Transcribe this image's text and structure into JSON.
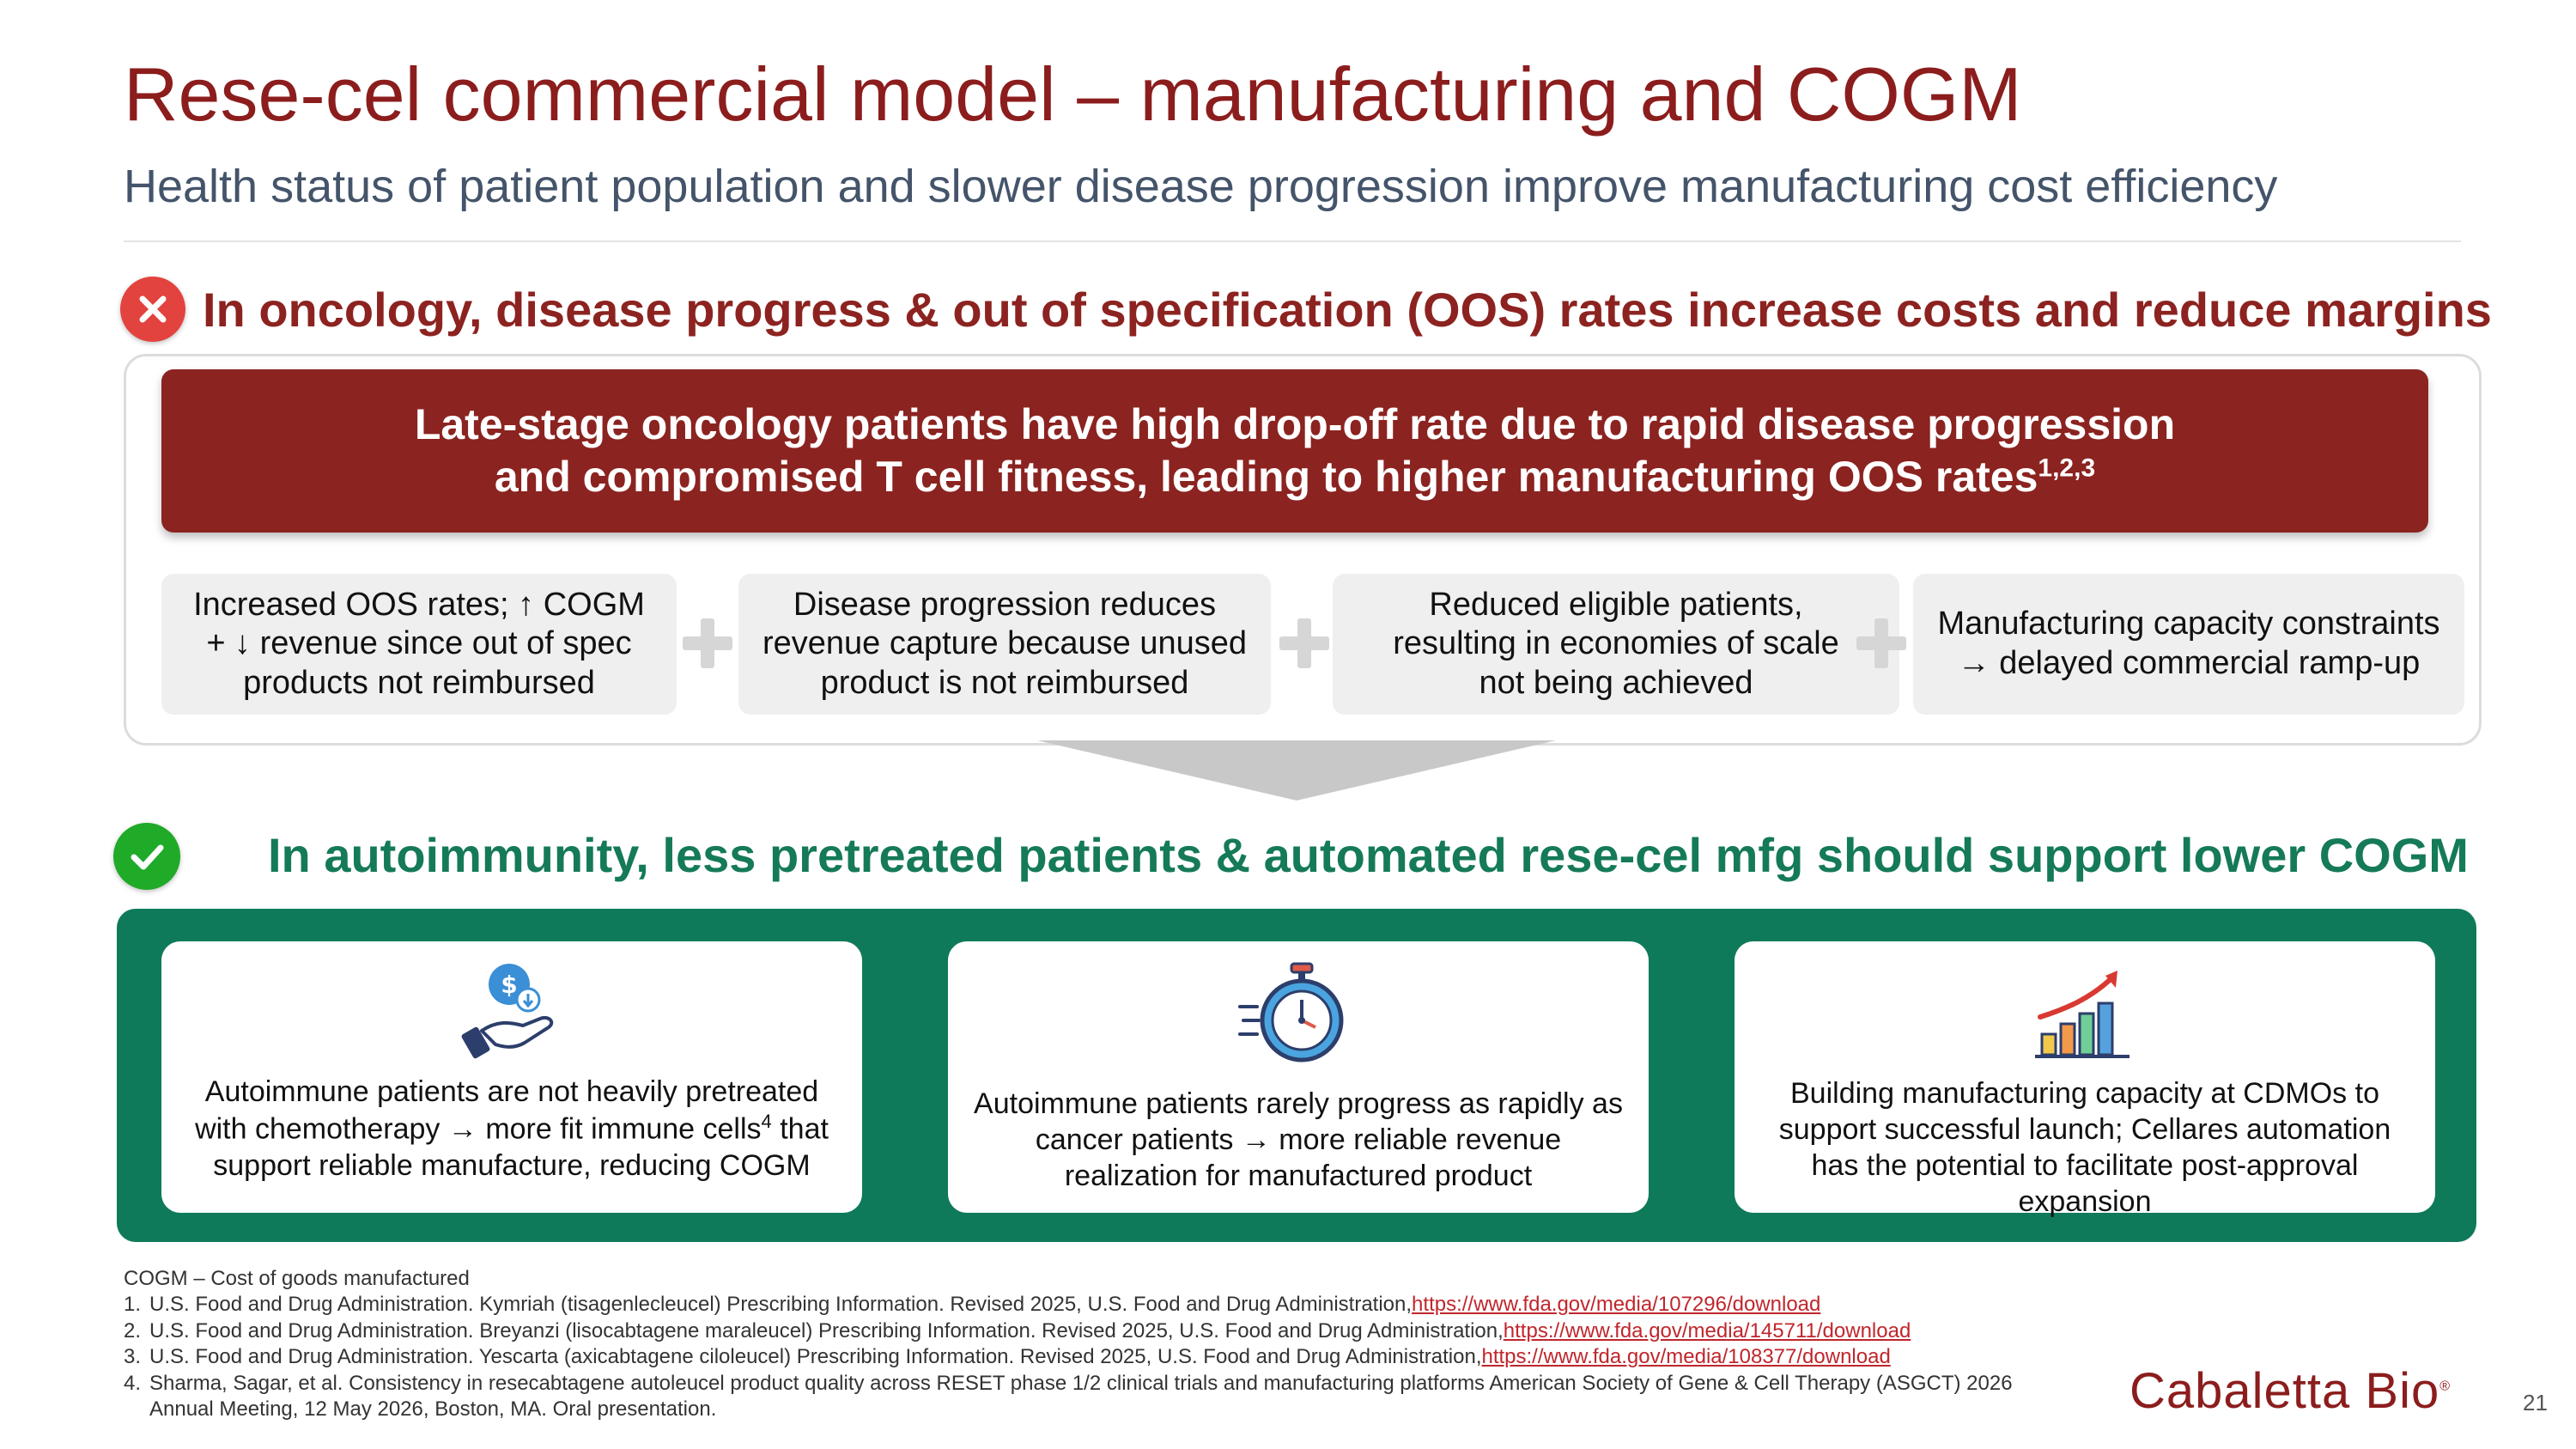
{
  "header": {
    "title": "Rese-cel commercial model – manufacturing and COGM",
    "subtitle": "Health status of patient population and slower disease progression improve manufacturing cost efficiency"
  },
  "oncology": {
    "heading": "In oncology, disease progress & out of specification (OOS) rates increase costs and reduce margins",
    "banner_line1": "Late-stage oncology patients have high drop-off rate due to rapid disease progression",
    "banner_line2": "and compromised T cell fitness, leading to higher manufacturing OOS rates",
    "banner_sup": "1,2,3",
    "boxes": [
      {
        "line1": "Increased OOS rates; ↑ COGM",
        "line2": "+ ↓ revenue since out of spec",
        "line3": "products not reimbursed"
      },
      {
        "line1": "Disease progression reduces",
        "line2": "revenue capture because unused",
        "line3": "product is not reimbursed"
      },
      {
        "line1": "Reduced eligible patients,",
        "line2": "resulting in economies of scale",
        "line3": "not being achieved"
      },
      {
        "line1": "Manufacturing capacity constraints",
        "line2": "→ delayed commercial ramp-up"
      }
    ]
  },
  "autoimmunity": {
    "heading": "In autoimmunity, less pretreated patients & automated rese-cel mfg should support lower COGM",
    "cards": [
      {
        "icon": "hand-dollar-down-icon",
        "line1": "Autoimmune patients are not heavily pretreated",
        "line2a": "with chemotherapy → more fit immune cells",
        "line2_sup": "4",
        "line2b": " that",
        "line3": "support reliable manufacture, reducing COGM"
      },
      {
        "icon": "stopwatch-icon",
        "line1": "Autoimmune patients rarely progress as rapidly as",
        "line2": "cancer patients → more reliable revenue",
        "line3": "realization for manufactured product"
      },
      {
        "icon": "growth-chart-icon",
        "line1": "Building manufacturing capacity at CDMOs to",
        "line2": "support successful launch; Cellares automation",
        "line3": "has the potential to facilitate post-approval",
        "line4": "expansion"
      }
    ]
  },
  "footnotes": {
    "abbrev": "COGM – Cost of goods manufactured",
    "items": [
      {
        "num": "1.",
        "text": "U.S. Food and Drug Administration. Kymriah (tisagenlecleucel) Prescribing Information. Revised 2025, U.S. Food and Drug Administration,",
        "link": "https://www.fda.gov/media/107296/download"
      },
      {
        "num": "2.",
        "text": "U.S. Food and Drug Administration. Breyanzi (lisocabtagene maraleucel) Prescribing Information. Revised 2025, U.S. Food and Drug Administration,",
        "link": "https://www.fda.gov/media/145711/download"
      },
      {
        "num": "3.",
        "text": "U.S. Food and Drug Administration. Yescarta (axicabtagene ciloleucel) Prescribing Information. Revised 2025, U.S. Food and Drug Administration,",
        "link": "https://www.fda.gov/media/108377/download"
      }
    ],
    "item4_num": "4.",
    "item4_line1": "Sharma, Sagar, et al. Consistency in resecabtagene autoleucel product quality across RESET phase 1/2 clinical trials and manufacturing platforms American Society of Gene & Cell Therapy (ASGCT) 2026",
    "item4_line2": "Annual Meeting, 12 May 2026, Boston, MA. Oral presentation."
  },
  "logo": {
    "text": "Cabaletta Bio",
    "mark": "®"
  },
  "page_number": "21",
  "colors": {
    "title": "#8c1d1d",
    "oncology_red": "#8b2320",
    "x_icon": "#e3433f",
    "autoimmunity_green": "#0f7a5a",
    "check_icon": "#1faa28",
    "link": "#c0262c"
  }
}
